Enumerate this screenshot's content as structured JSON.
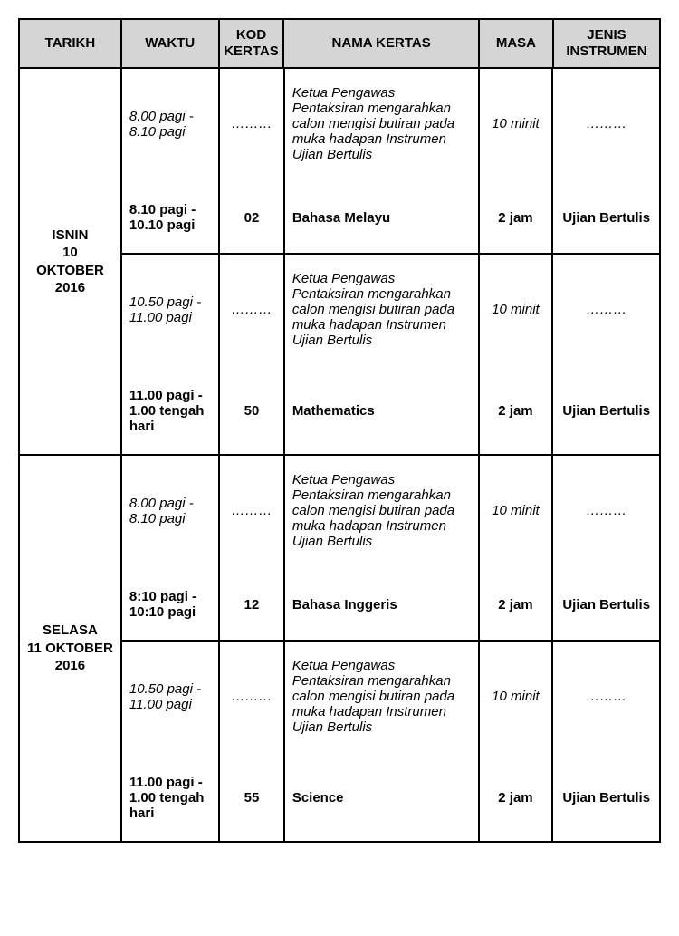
{
  "headers": {
    "tarikh": "TARIKH",
    "waktu": "WAKTU",
    "kod": "KOD KERTAS",
    "nama": "NAMA KERTAS",
    "masa": "MASA",
    "jenis": "JENIS INSTRUMEN"
  },
  "briefing_text": "Ketua Pengawas Pentaksiran mengarahkan calon mengisi butiran pada muka hadapan Instrumen Ujian Bertulis",
  "dots": "………",
  "days": [
    {
      "tarikh_line1": "ISNIN",
      "tarikh_line2": "10 OKTOBER",
      "tarikh_line3": "2016",
      "sessions": [
        {
          "brief_waktu": "8.00 pagi - 8.10 pagi",
          "brief_masa": "10 minit",
          "exam_waktu": "8.10 pagi - 10.10 pagi",
          "exam_kod": "02",
          "exam_nama": "Bahasa Melayu",
          "exam_masa": "2 jam",
          "exam_jenis": "Ujian Bertulis"
        },
        {
          "brief_waktu": "10.50 pagi - 11.00 pagi",
          "brief_masa": "10 minit",
          "exam_waktu": "11.00 pagi - 1.00 tengah hari",
          "exam_kod": "50",
          "exam_nama": "Mathematics",
          "exam_masa": "2 jam",
          "exam_jenis": "Ujian Bertulis"
        }
      ]
    },
    {
      "tarikh_line1": "SELASA",
      "tarikh_line2": "11  OKTOBER",
      "tarikh_line3": "2016",
      "sessions": [
        {
          "brief_waktu": "8.00 pagi - 8.10 pagi",
          "brief_masa": "10 minit",
          "exam_waktu": "8:10 pagi - 10:10 pagi",
          "exam_kod": "12",
          "exam_nama": "Bahasa Inggeris",
          "exam_masa": "2 jam",
          "exam_jenis": "Ujian Bertulis"
        },
        {
          "brief_waktu": "10.50 pagi - 11.00 pagi",
          "brief_masa": "10 minit",
          "exam_waktu": "11.00 pagi - 1.00 tengah hari",
          "exam_kod": "55",
          "exam_nama": "Science",
          "exam_masa": "2 jam",
          "exam_jenis": "Ujian Bertulis"
        }
      ]
    }
  ],
  "styles": {
    "header_bg": "#d5d5d5",
    "border_color": "#000000",
    "font_family": "Arial"
  }
}
